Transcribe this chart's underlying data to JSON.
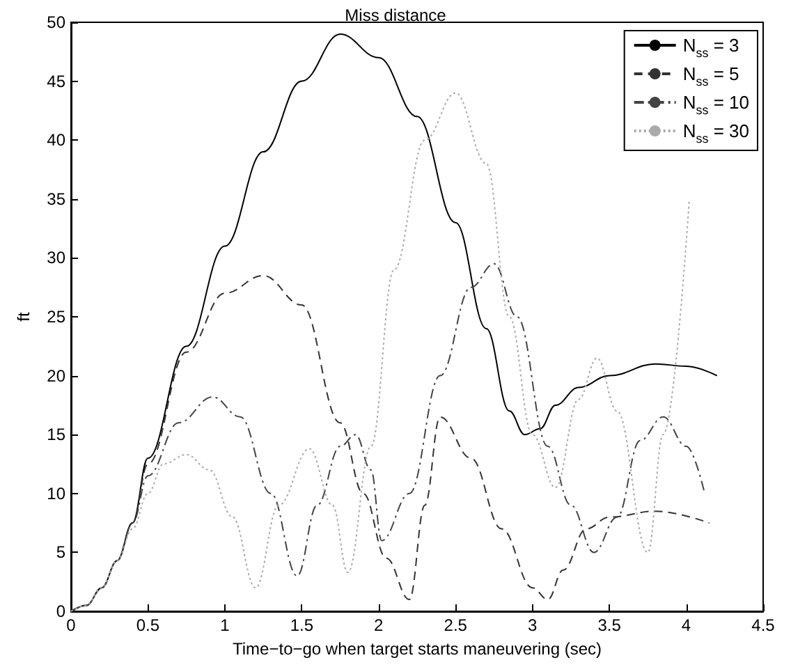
{
  "chart_data": {
    "type": "line",
    "title": "Miss distance",
    "xlabel": "Time−to−go when target starts maneuvering (sec)",
    "ylabel": "ft",
    "xlim": [
      0,
      4.5
    ],
    "xticks": [
      0,
      0.5,
      1,
      1.5,
      2,
      2.5,
      3,
      3.5,
      4,
      4.5
    ],
    "ylim": [
      0,
      50
    ],
    "yticks": [
      0,
      5,
      10,
      15,
      20,
      25,
      30,
      35,
      40,
      45,
      50
    ],
    "grid": false,
    "legend": "top right",
    "marker": "none",
    "series": [
      {
        "name": "N$_{ss}$ = 3",
        "color": "#000000",
        "line_style": "solid",
        "x": [
          0,
          0.1,
          0.2,
          0.3,
          0.4,
          0.5,
          0.75,
          1,
          1.25,
          1.5,
          1.75,
          2,
          2.25,
          2.5,
          2.7,
          2.85,
          2.95,
          3.05,
          3.15,
          3.3,
          3.5,
          3.8,
          4.0,
          4.2
        ],
        "values": [
          0,
          0.5,
          2,
          4.3,
          7.5,
          13,
          22.5,
          31,
          39,
          45,
          49,
          47,
          42,
          33,
          24,
          17,
          15,
          15.5,
          17.5,
          19,
          20,
          21,
          20.8,
          20
        ]
      },
      {
        "name": "N$_{ss}$ = 5",
        "color": "#333333",
        "line_style": "dashed",
        "x": [
          0,
          0.1,
          0.2,
          0.3,
          0.4,
          0.5,
          0.75,
          1,
          1.25,
          1.5,
          1.75,
          1.9,
          2.05,
          2.2,
          2.3,
          2.4,
          2.6,
          2.8,
          3.0,
          3.1,
          3.2,
          3.35,
          3.5,
          3.8,
          4.15
        ],
        "values": [
          0,
          0.5,
          2,
          4.3,
          7.5,
          12.5,
          22,
          27,
          28.5,
          26,
          16,
          10,
          4.5,
          1,
          9,
          16.5,
          13,
          7,
          2,
          1,
          3.5,
          7,
          8,
          8.5,
          7.5
        ]
      },
      {
        "name": "N$_{ss}$ = 10",
        "color": "#444444",
        "line_style": "dashdot",
        "x": [
          0,
          0.1,
          0.2,
          0.3,
          0.4,
          0.5,
          0.7,
          0.92,
          1.1,
          1.3,
          1.47,
          1.6,
          1.75,
          1.85,
          1.95,
          2.02,
          2.2,
          2.4,
          2.6,
          2.75,
          2.9,
          3.1,
          3.25,
          3.4,
          3.55,
          3.7,
          3.85,
          4.0,
          4.12
        ],
        "values": [
          0,
          0.5,
          2,
          4.3,
          7.5,
          11.5,
          16,
          18.2,
          16.5,
          10,
          3,
          9,
          14,
          15,
          12,
          6,
          10,
          20,
          27.5,
          29.5,
          25,
          14,
          9,
          5,
          8,
          14.5,
          16.5,
          14,
          10
        ]
      },
      {
        "name": "N$_{ss}$ = 30",
        "color": "#aaaaaa",
        "line_style": "dotted",
        "x": [
          0,
          0.1,
          0.2,
          0.3,
          0.4,
          0.5,
          0.6,
          0.75,
          0.9,
          1.05,
          1.2,
          1.35,
          1.55,
          1.7,
          1.8,
          1.95,
          2.1,
          2.3,
          2.5,
          2.7,
          2.85,
          3.0,
          3.15,
          3.3,
          3.42,
          3.55,
          3.75,
          3.85,
          4.02
        ],
        "values": [
          0,
          0.5,
          2,
          4.3,
          7,
          10,
          12.5,
          13.3,
          12,
          8,
          2,
          9,
          13.8,
          9,
          3.3,
          14,
          29,
          40,
          44,
          38,
          25,
          15,
          10.5,
          18,
          21.5,
          17,
          5,
          15,
          35
        ]
      }
    ]
  }
}
